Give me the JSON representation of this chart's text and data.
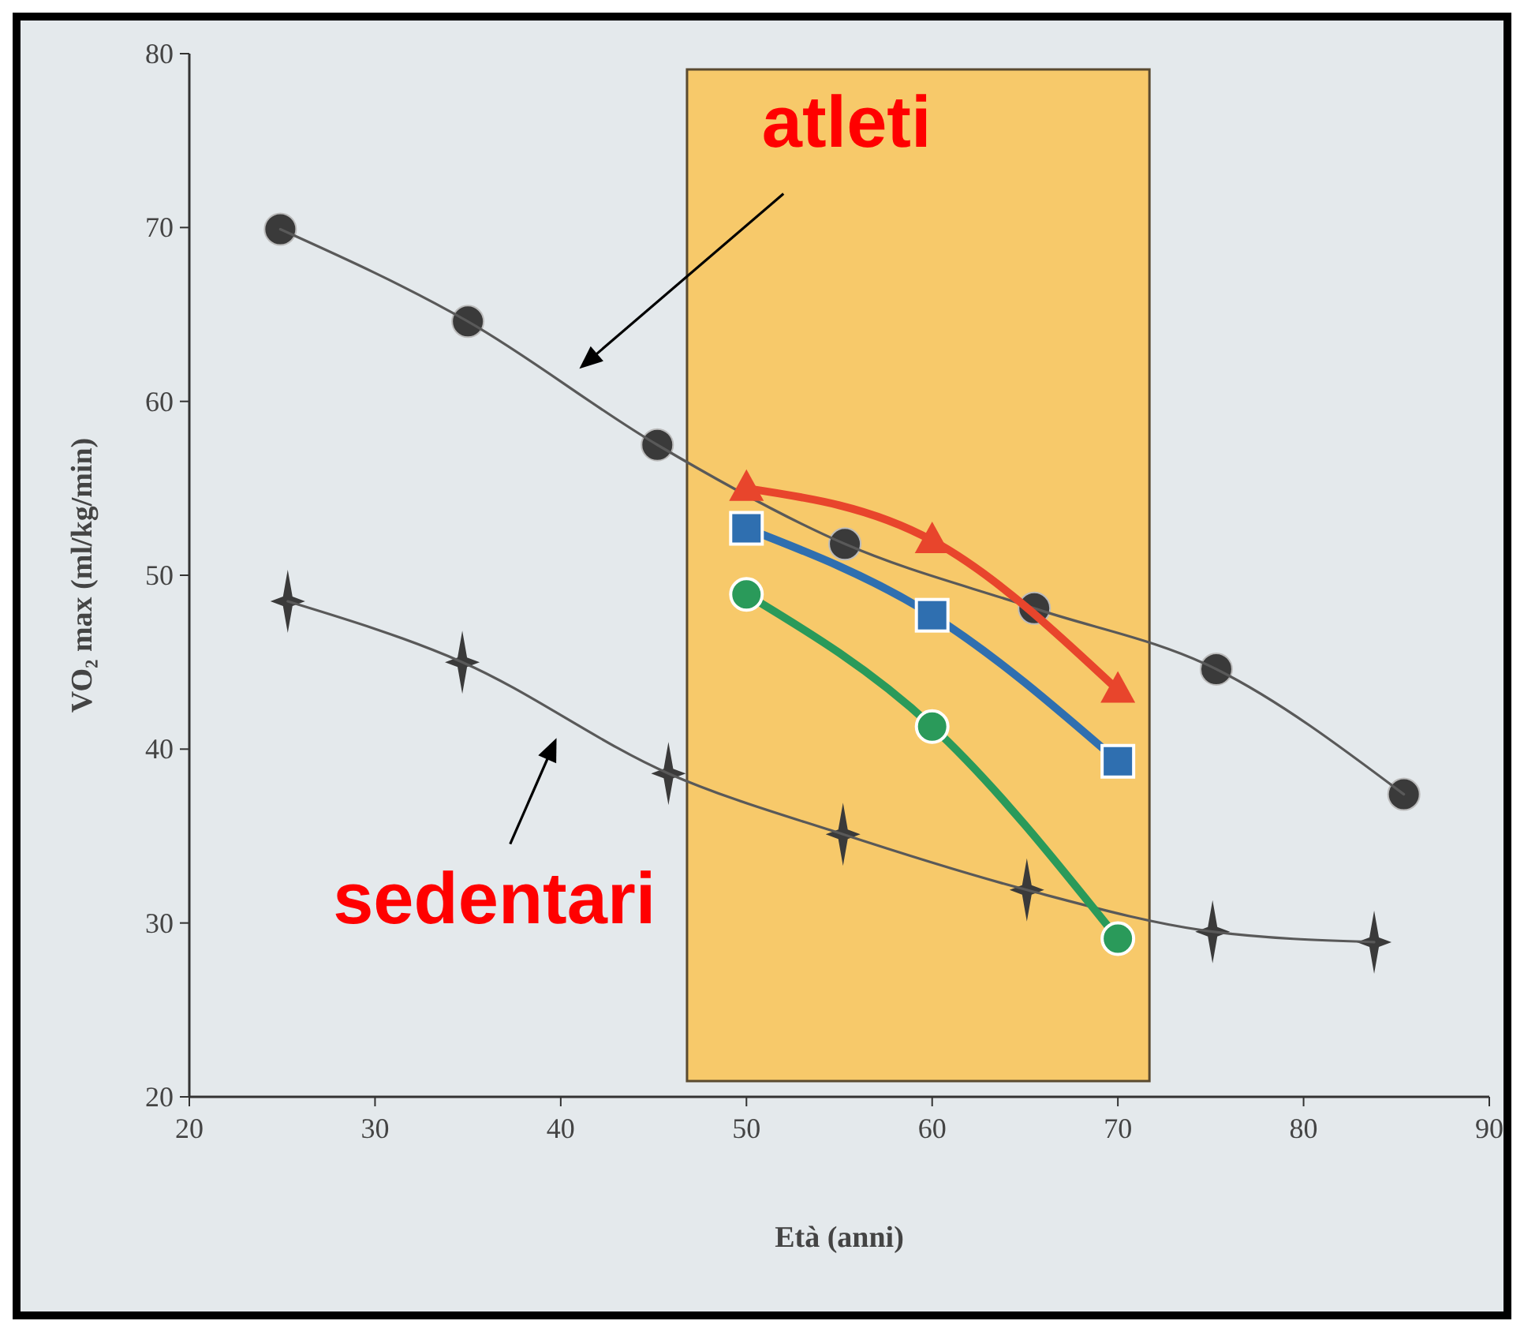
{
  "chart_data": {
    "type": "line",
    "xlabel": "Età (anni)",
    "ylabel": "VO₂ max (ml/kg/min)",
    "xlim": [
      20,
      90
    ],
    "xticks": [
      20,
      30,
      40,
      50,
      60,
      70,
      80,
      90
    ],
    "ylim": [
      20,
      80
    ],
    "yticks": [
      20,
      30,
      40,
      50,
      60,
      70,
      80
    ],
    "grid": false,
    "legend": false,
    "series": [
      {
        "name": "atleti",
        "color": "#3a3a3a",
        "marker": "circle",
        "x": [
          24.9,
          35,
          45.2,
          55.3,
          65.5,
          75.3,
          85.4
        ],
        "values": [
          69.9,
          64.6,
          57.5,
          51.8,
          48.1,
          44.6,
          37.4
        ]
      },
      {
        "name": "sedentari",
        "color": "#3a3a3a",
        "marker": "star",
        "x": [
          25.3,
          34.7,
          45.8,
          55.2,
          65.1,
          75.1,
          83.8
        ],
        "values": [
          48.5,
          45,
          38.6,
          35.1,
          31.9,
          29.5,
          28.9
        ]
      },
      {
        "color": "#e8452c",
        "marker": "triangle",
        "x": [
          50,
          60,
          70
        ],
        "values": [
          55,
          52,
          43.4
        ]
      },
      {
        "color": "#2f6fb0",
        "marker": "square",
        "x": [
          50,
          60,
          70
        ],
        "values": [
          52.7,
          47.7,
          39.3
        ]
      },
      {
        "color": "#2a9a5a",
        "marker": "circle",
        "x": [
          50,
          60,
          70
        ],
        "values": [
          48.9,
          41.3,
          29.1
        ]
      }
    ],
    "bands": [
      {
        "axis": "x",
        "from": 46.8,
        "to": 71.7,
        "color": "#f7c96a"
      }
    ]
  }
}
